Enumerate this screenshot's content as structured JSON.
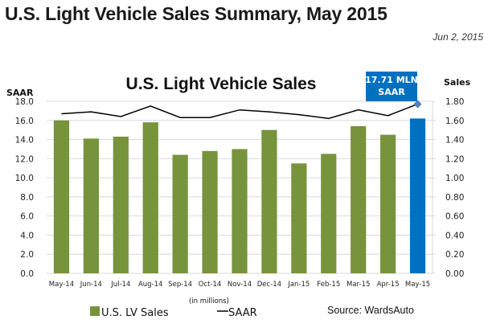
{
  "header": {
    "title": "U.S. Light Vehicle Sales Summary, May 2015",
    "date": "Jun 2, 2015"
  },
  "colors": {
    "bar": "#77933c",
    "highlight_bar": "#0070c0",
    "line": "#000000",
    "marker": "#4f81bd",
    "grid": "#d9d9d9",
    "callout_bg": "#0070c0"
  },
  "chart_data": {
    "type": "bar",
    "title": "U.S. Light Vehicle Sales",
    "categories": [
      "May-14",
      "Jun-14",
      "Jul-14",
      "Aug-14",
      "Sep-14",
      "Oct-14",
      "Nov-14",
      "Dec-14",
      "Jan-15",
      "Feb-15",
      "Mar-15",
      "Apr-15",
      "May-15"
    ],
    "series": [
      {
        "name": "U.S. LV Sales",
        "type": "bar",
        "axis": "right",
        "values": [
          1.6,
          1.41,
          1.43,
          1.58,
          1.24,
          1.28,
          1.3,
          1.5,
          1.15,
          1.25,
          1.54,
          1.45,
          1.62
        ],
        "highlight_index": 12
      },
      {
        "name": "SAAR",
        "type": "line",
        "axis": "left",
        "values": [
          16.7,
          16.9,
          16.4,
          17.5,
          16.3,
          16.3,
          17.1,
          16.9,
          16.6,
          16.2,
          17.1,
          16.5,
          17.71
        ],
        "marker_index": 12
      }
    ],
    "left_axis": {
      "title": "SAAR",
      "range": [
        0,
        18
      ],
      "ticks": [
        "0.0",
        "2.0",
        "4.0",
        "6.0",
        "8.0",
        "10.0",
        "12.0",
        "14.0",
        "16.0",
        "18.0"
      ]
    },
    "right_axis": {
      "title": "Sales",
      "range": [
        0,
        1.8
      ],
      "ticks": [
        "0.00",
        "0.20",
        "0.40",
        "0.60",
        "0.80",
        "1.00",
        "1.20",
        "1.40",
        "1.60",
        "1.80"
      ]
    },
    "grid": true,
    "legend": {
      "placement": "bottom",
      "note": "(in millions)",
      "items": [
        "U.S. LV Sales",
        "SAAR"
      ]
    },
    "callout": {
      "line1": "17.71 MLN",
      "line2": "SAAR"
    },
    "source": "Source: WardsAuto"
  }
}
